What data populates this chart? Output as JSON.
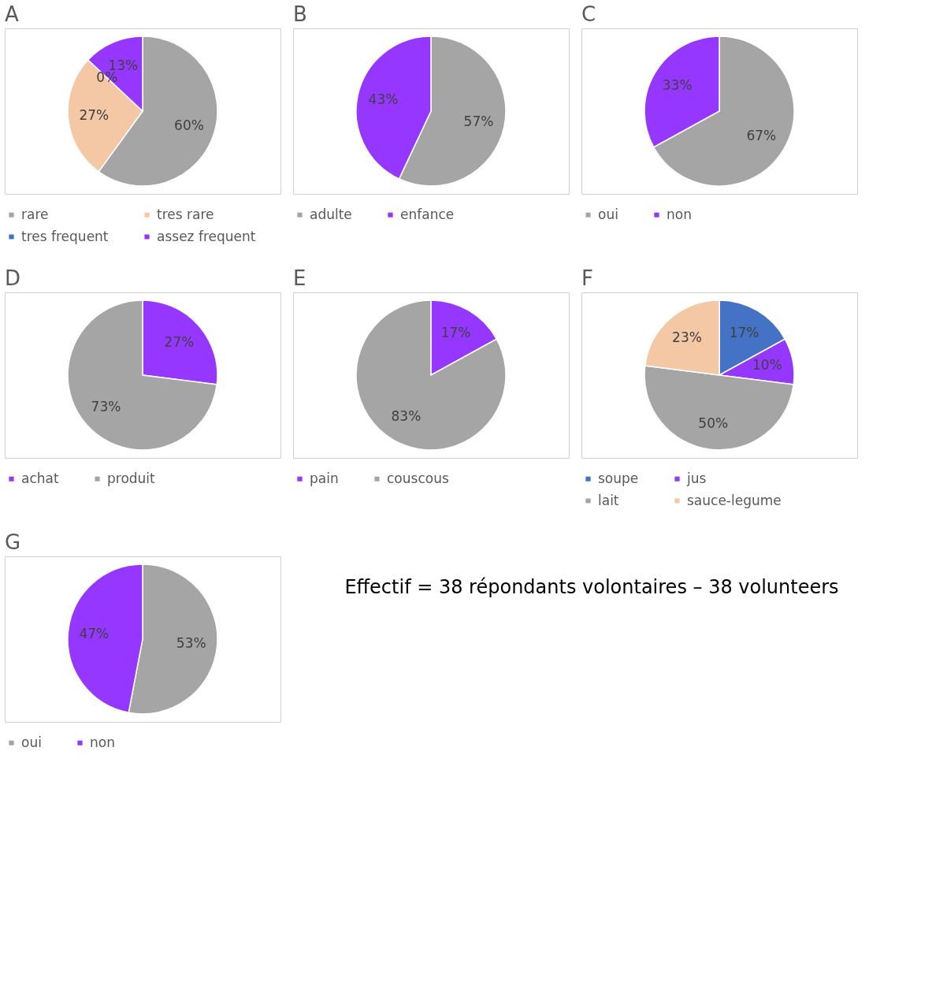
{
  "chart_data": [
    {
      "type": "pie",
      "title": "A",
      "categories": [
        "rare",
        "tres rare",
        "tres frequent",
        "assez frequent"
      ],
      "values": [
        60,
        27,
        0,
        13
      ],
      "colors": [
        "#a5a5a5",
        "#f4c7a5",
        "#4472c4",
        "#9537ff"
      ],
      "value_labels": [
        "60%",
        "27%",
        "0%",
        "13%"
      ],
      "legend": "bottom"
    },
    {
      "type": "pie",
      "title": "B",
      "categories": [
        "adulte",
        "enfance"
      ],
      "values": [
        57,
        43
      ],
      "colors": [
        "#a5a5a5",
        "#9537ff"
      ],
      "value_labels": [
        "57%",
        "43%"
      ],
      "legend": "bottom"
    },
    {
      "type": "pie",
      "title": "C",
      "categories": [
        "oui",
        "non"
      ],
      "values": [
        67,
        33
      ],
      "colors": [
        "#a5a5a5",
        "#9537ff"
      ],
      "value_labels": [
        "67%",
        "33%"
      ],
      "legend": "bottom"
    },
    {
      "type": "pie",
      "title": "D",
      "categories": [
        "achat",
        "produit"
      ],
      "values": [
        27,
        73
      ],
      "colors": [
        "#9537ff",
        "#a5a5a5"
      ],
      "value_labels": [
        "27%",
        "73%"
      ],
      "legend": "bottom"
    },
    {
      "type": "pie",
      "title": "E",
      "categories": [
        "pain",
        "couscous"
      ],
      "values": [
        17,
        83
      ],
      "colors": [
        "#9537ff",
        "#a5a5a5"
      ],
      "value_labels": [
        "17%",
        "83%"
      ],
      "legend": "bottom"
    },
    {
      "type": "pie",
      "title": "F",
      "categories": [
        "soupe",
        "jus",
        "lait",
        "sauce-legume"
      ],
      "values": [
        17,
        10,
        50,
        23
      ],
      "colors": [
        "#4472c4",
        "#9537ff",
        "#a5a5a5",
        "#f4c7a5"
      ],
      "value_labels": [
        "17%",
        "10%",
        "50%",
        "23%"
      ],
      "legend": "bottom"
    },
    {
      "type": "pie",
      "title": "G",
      "categories": [
        "oui",
        "non"
      ],
      "values": [
        53,
        47
      ],
      "colors": [
        "#a5a5a5",
        "#9537ff"
      ],
      "value_labels": [
        "53%",
        "47%"
      ],
      "legend": "bottom"
    },
    {
      "type": "other",
      "annotations": [
        "Effectif = 38 répondants volontaires – 38 volunteers"
      ]
    }
  ]
}
